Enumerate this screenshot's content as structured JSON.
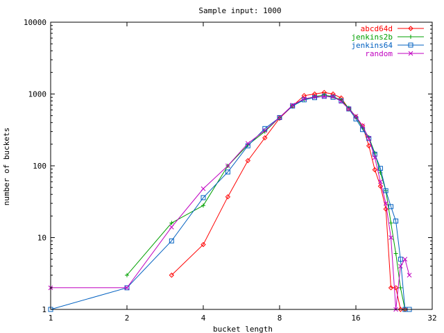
{
  "chart_data": {
    "type": "line",
    "title": "Sample input: 1000",
    "xlabel": "bucket length",
    "ylabel": "number of buckets",
    "x_scale": "log2",
    "y_scale": "log10",
    "xlim": [
      1,
      32
    ],
    "ylim": [
      1,
      10000
    ],
    "x_ticks": [
      1,
      2,
      4,
      8,
      16,
      32
    ],
    "x_tick_labels": [
      "1",
      "2",
      "4",
      "8",
      "16",
      "32"
    ],
    "y_ticks": [
      1,
      10,
      100,
      1000,
      10000
    ],
    "y_tick_labels": [
      "1",
      "10",
      "100",
      "1000",
      "10000"
    ],
    "grid": false,
    "legend_position": "top-right",
    "series": [
      {
        "name": "abcd64d",
        "color": "#ff0000",
        "marker": "diamond",
        "points": [
          [
            3,
            3
          ],
          [
            4,
            8
          ],
          [
            5,
            37
          ],
          [
            6,
            118
          ],
          [
            7,
            245
          ],
          [
            8,
            460
          ],
          [
            9,
            680
          ],
          [
            10,
            950
          ],
          [
            11,
            1000
          ],
          [
            12,
            1050
          ],
          [
            13,
            1000
          ],
          [
            14,
            880
          ],
          [
            15,
            620
          ],
          [
            16,
            480
          ],
          [
            17,
            360
          ],
          [
            18,
            190
          ],
          [
            19,
            88
          ],
          [
            20,
            52
          ],
          [
            21,
            25
          ],
          [
            22,
            2
          ],
          [
            23,
            2
          ],
          [
            24,
            1
          ],
          [
            25,
            1
          ]
        ]
      },
      {
        "name": "jenkins2b",
        "color": "#00a000",
        "marker": "plus",
        "points": [
          [
            2,
            3
          ],
          [
            3,
            16
          ],
          [
            4,
            28
          ],
          [
            5,
            100
          ],
          [
            6,
            195
          ],
          [
            7,
            300
          ],
          [
            8,
            470
          ],
          [
            9,
            690
          ],
          [
            10,
            840
          ],
          [
            11,
            920
          ],
          [
            12,
            970
          ],
          [
            13,
            920
          ],
          [
            14,
            820
          ],
          [
            15,
            640
          ],
          [
            16,
            480
          ],
          [
            17,
            340
          ],
          [
            18,
            250
          ],
          [
            19,
            150
          ],
          [
            20,
            80
          ],
          [
            21,
            45
          ],
          [
            22,
            16
          ],
          [
            23,
            6
          ],
          [
            24,
            2
          ],
          [
            25,
            1
          ]
        ]
      },
      {
        "name": "jenkins64",
        "color": "#0060c0",
        "marker": "square",
        "points": [
          [
            1,
            1
          ],
          [
            2,
            2
          ],
          [
            3,
            9
          ],
          [
            4,
            36
          ],
          [
            5,
            82
          ],
          [
            6,
            190
          ],
          [
            7,
            330
          ],
          [
            8,
            470
          ],
          [
            9,
            680
          ],
          [
            10,
            830
          ],
          [
            11,
            890
          ],
          [
            12,
            930
          ],
          [
            13,
            900
          ],
          [
            14,
            800
          ],
          [
            15,
            620
          ],
          [
            16,
            450
          ],
          [
            17,
            320
          ],
          [
            18,
            240
          ],
          [
            19,
            145
          ],
          [
            20,
            92
          ],
          [
            21,
            45
          ],
          [
            22,
            27
          ],
          [
            23,
            17
          ],
          [
            24,
            5
          ],
          [
            25,
            1
          ],
          [
            26,
            1
          ]
        ]
      },
      {
        "name": "random",
        "color": "#c000c0",
        "marker": "cross",
        "points": [
          [
            1,
            2
          ],
          [
            2,
            2
          ],
          [
            3,
            14
          ],
          [
            4,
            48
          ],
          [
            5,
            100
          ],
          [
            6,
            205
          ],
          [
            7,
            310
          ],
          [
            8,
            470
          ],
          [
            9,
            700
          ],
          [
            10,
            860
          ],
          [
            11,
            910
          ],
          [
            12,
            920
          ],
          [
            13,
            920
          ],
          [
            14,
            790
          ],
          [
            15,
            620
          ],
          [
            16,
            490
          ],
          [
            17,
            360
          ],
          [
            18,
            240
          ],
          [
            19,
            130
          ],
          [
            20,
            60
          ],
          [
            21,
            30
          ],
          [
            22,
            10
          ],
          [
            23,
            1
          ],
          [
            24,
            4
          ],
          [
            25,
            5
          ],
          [
            26,
            3
          ]
        ]
      }
    ]
  }
}
